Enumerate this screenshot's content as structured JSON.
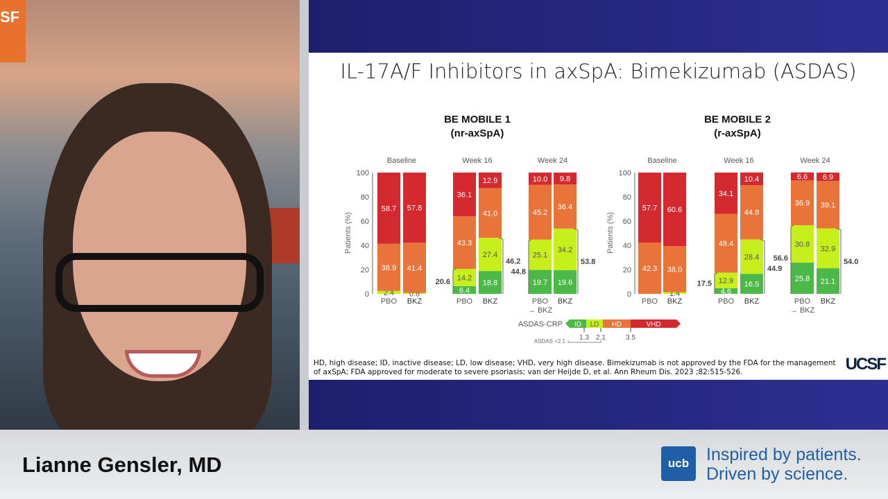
{
  "video": {
    "logo_text": "SF"
  },
  "slide": {
    "title": "IL-17A/F Inhibitors in axSpA: Bimekizumab (ASDAS)",
    "footnote": "HD, high disease; ID, inactive disease; LD, low disease; VHD, very high disease. Bimekizumab is not approved by the FDA for the management of axSpA; FDA approved for moderate to severe psoriasis; van der Heijde D, et al. Ann Rheum Dis. 2023 ;82:515-526.",
    "logo": "UCSF"
  },
  "banner": {
    "speaker": "Lianne Gensler, MD",
    "logo": "ucb",
    "tagline_1a": "Inspired by ",
    "tagline_1b": "patients.",
    "tagline_2a": "Driven by ",
    "tagline_2b": "science."
  },
  "colors": {
    "ID": "#4cb848",
    "LD": "#c6ef1b",
    "HD": "#e9743a",
    "VHD": "#d3292f"
  },
  "chart_data": [
    {
      "type": "bar",
      "stacked": true,
      "title": "BE MOBILE 1",
      "subtitle": "(nr-axSpA)",
      "ylabel": "Patients (%)",
      "ylim": [
        0,
        100
      ],
      "yticks": [
        0,
        20,
        40,
        60,
        80,
        100
      ],
      "groups": [
        {
          "label": "Baseline",
          "bars": [
            {
              "label": "PBO",
              "ID": 0,
              "LD": 2.4,
              "HD": 38.9,
              "VHD": 58.7
            },
            {
              "label": "BKZ",
              "ID": 0,
              "LD": 0.8,
              "HD": 41.4,
              "VHD": 57.8
            }
          ],
          "brackets": []
        },
        {
          "label": "Week 16",
          "bars": [
            {
              "label": "PBO",
              "ID": 6.4,
              "LD": 14.2,
              "HD": 43.3,
              "VHD": 36.1
            },
            {
              "label": "BKZ",
              "ID": 18.8,
              "LD": 27.4,
              "HD": 41.0,
              "VHD": 12.9
            }
          ],
          "brackets": [
            "20.6",
            "46.2"
          ]
        },
        {
          "label": "Week 24",
          "bars": [
            {
              "label": "PBO",
              "sub": "→ BKZ",
              "ID": 19.7,
              "LD": 25.1,
              "HD": 45.2,
              "VHD": 10.0
            },
            {
              "label": "BKZ",
              "ID": 19.6,
              "LD": 34.2,
              "HD": 36.4,
              "VHD": 9.8
            }
          ],
          "brackets": [
            "44.8",
            "53.8"
          ]
        }
      ]
    },
    {
      "type": "bar",
      "stacked": true,
      "title": "BE MOBILE 2",
      "subtitle": "(r-axSpA)",
      "ylabel": "Patients (%)",
      "ylim": [
        0,
        100
      ],
      "yticks": [
        0,
        20,
        40,
        60,
        80,
        100
      ],
      "groups": [
        {
          "label": "Baseline",
          "bars": [
            {
              "label": "PBO",
              "ID": 0,
              "LD": 0,
              "HD": 42.3,
              "VHD": 57.7
            },
            {
              "label": "BKZ",
              "ID": 0,
              "LD": 1.4,
              "HD": 38.0,
              "VHD": 60.6
            }
          ],
          "brackets": []
        },
        {
          "label": "Week 16",
          "bars": [
            {
              "label": "PBO",
              "ID": 4.6,
              "LD": 12.9,
              "HD": 48.4,
              "VHD": 34.1
            },
            {
              "label": "BKZ",
              "ID": 16.5,
              "LD": 28.4,
              "HD": 44.8,
              "VHD": 10.4
            }
          ],
          "brackets": [
            "17.5",
            "44.9"
          ]
        },
        {
          "label": "Week 24",
          "bars": [
            {
              "label": "PBO",
              "sub": "→ BKZ",
              "ID": 25.8,
              "LD": 30.8,
              "HD": 36.9,
              "VHD": 6.6
            },
            {
              "label": "BKZ",
              "ID": 21.1,
              "LD": 32.9,
              "HD": 39.1,
              "VHD": 6.9
            }
          ],
          "brackets": [
            "56.6",
            "54.0"
          ]
        }
      ]
    }
  ],
  "legend": {
    "label": "ASDAS-CRP",
    "items": [
      "ID",
      "LD",
      "HD",
      "VHD"
    ],
    "thresholds": [
      "1.3",
      "2.1",
      "3.5"
    ],
    "note": "ASDAS <2.1"
  }
}
